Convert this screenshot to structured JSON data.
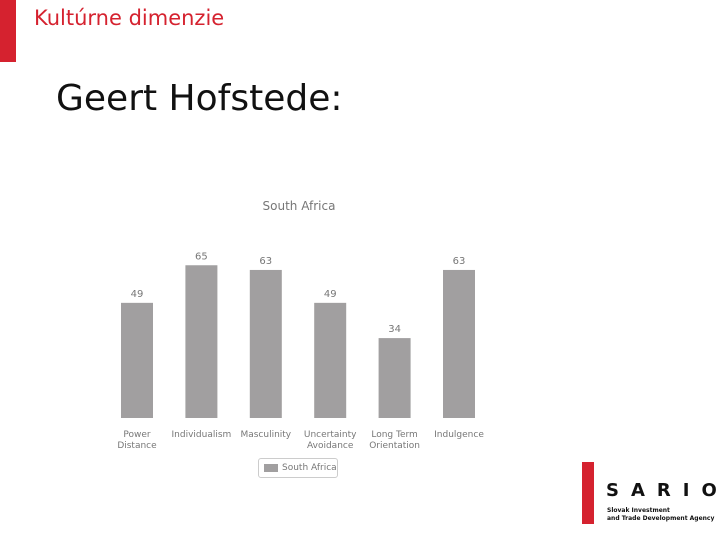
{
  "slide": {
    "title": "Kultúrne dimenzie",
    "heading": "Geert Hofstede:",
    "accent_color": "#d5222f"
  },
  "chart_data": {
    "type": "bar",
    "title": "South Africa",
    "categories": [
      [
        "Power",
        "Distance"
      ],
      [
        "Individualism"
      ],
      [
        "Masculinity"
      ],
      [
        "Uncertainty",
        "Avoidance"
      ],
      [
        "Long Term",
        "Orientation"
      ],
      [
        "Indulgence"
      ]
    ],
    "series": [
      {
        "name": "South Africa",
        "values": [
          49,
          65,
          63,
          49,
          34,
          63
        ],
        "color": "#a19fa0"
      }
    ],
    "ylim": [
      0,
      100
    ],
    "grid": false,
    "legend_position": "bottom"
  },
  "logo": {
    "name": "SARIO",
    "tagline_line1": "Slovak Investment",
    "tagline_line2": "and Trade Development Agency",
    "color": "#d5222f"
  }
}
